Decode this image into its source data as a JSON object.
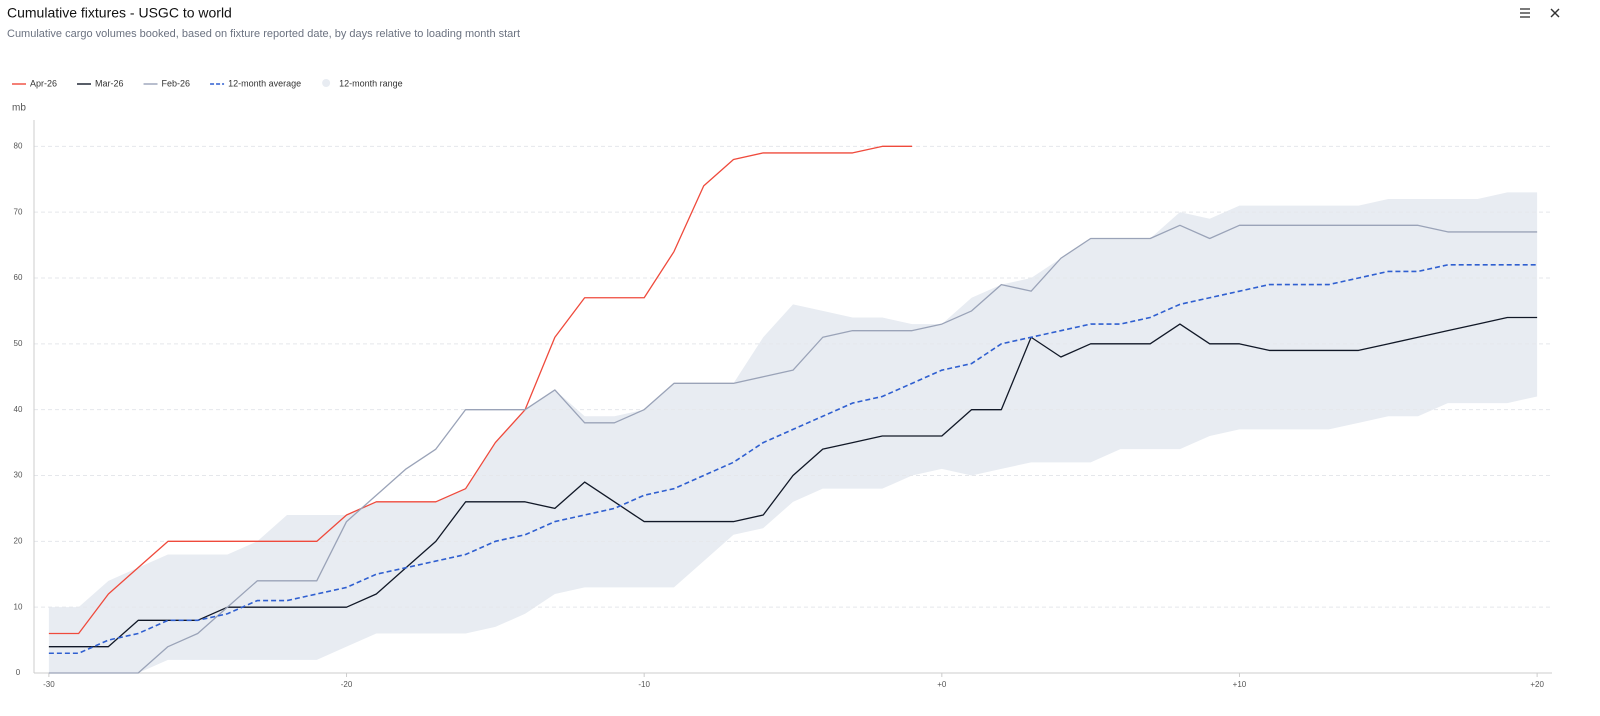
{
  "header": {
    "title": "Cumulative fixtures - USGC to world",
    "subtitle": "Cumulative cargo volumes booked, based on fixture reported date, by days relative to loading month start"
  },
  "chart_data": {
    "type": "line",
    "y_label": "mb",
    "x": [
      -30,
      -29,
      -28,
      -27,
      -26,
      -25,
      -24,
      -23,
      -22,
      -21,
      -20,
      -19,
      -18,
      -17,
      -16,
      -15,
      -14,
      -13,
      -12,
      -11,
      -10,
      -9,
      -8,
      -7,
      -6,
      -5,
      -4,
      -3,
      -2,
      -1,
      0,
      1,
      2,
      3,
      4,
      5,
      6,
      7,
      8,
      9,
      10,
      11,
      12,
      13,
      14,
      15,
      16,
      17,
      18,
      19,
      20
    ],
    "xlim": [
      -30.5,
      20.5
    ],
    "xticks": [
      -30,
      -20,
      -10,
      {
        "value": 0,
        "label": "+0"
      },
      {
        "value": 10,
        "label": "+10"
      },
      {
        "value": 20,
        "label": "+20"
      }
    ],
    "ylim": [
      0,
      84
    ],
    "yticks": [
      0,
      10,
      20,
      30,
      40,
      50,
      60,
      70,
      80
    ],
    "grid": true,
    "range": {
      "name": "12-month range",
      "color": "#e8ecf2",
      "low": [
        0,
        0,
        0,
        0,
        2,
        2,
        2,
        2,
        2,
        2,
        4,
        6,
        6,
        6,
        6,
        7,
        9,
        12,
        13,
        13,
        13,
        13,
        17,
        21,
        22,
        26,
        28,
        28,
        28,
        30,
        31,
        30,
        31,
        32,
        32,
        32,
        34,
        34,
        34,
        36,
        37,
        37,
        37,
        37,
        38,
        39,
        39,
        41,
        41,
        41,
        42
      ],
      "high": [
        10,
        10,
        14,
        16,
        18,
        18,
        18,
        20,
        24,
        24,
        24,
        26,
        26,
        26,
        28,
        35,
        40,
        43,
        39,
        39,
        40,
        44,
        44,
        44,
        51,
        56,
        55,
        54,
        54,
        53,
        53,
        57,
        59,
        60,
        63,
        66,
        66,
        66,
        70,
        69,
        71,
        71,
        71,
        71,
        71,
        72,
        72,
        72,
        72,
        73,
        73
      ]
    },
    "series": [
      {
        "name": "Apr-26",
        "color": "#ef4a3c",
        "dashed": false,
        "values": [
          6,
          6,
          12,
          16,
          20,
          20,
          20,
          20,
          20,
          20,
          24,
          26,
          26,
          26,
          28,
          35,
          40,
          51,
          57,
          57,
          57,
          64,
          74,
          78,
          79,
          79,
          79,
          79,
          80,
          80,
          null,
          null,
          null,
          null,
          null,
          null,
          null,
          null,
          null,
          null,
          null,
          null,
          null,
          null,
          null,
          null,
          null,
          null,
          null,
          null,
          null
        ]
      },
      {
        "name": "Mar-26",
        "color": "#111827",
        "dashed": false,
        "values": [
          4,
          4,
          4,
          8,
          8,
          8,
          10,
          10,
          10,
          10,
          10,
          12,
          16,
          20,
          26,
          26,
          26,
          25,
          29,
          26,
          23,
          23,
          23,
          23,
          24,
          30,
          34,
          35,
          36,
          36,
          36,
          40,
          40,
          51,
          48,
          50,
          50,
          50,
          53,
          50,
          50,
          49,
          49,
          49,
          49,
          50,
          51,
          52,
          53,
          54,
          54
        ]
      },
      {
        "name": "Feb-26",
        "color": "#9aa3b8",
        "dashed": false,
        "values": [
          0,
          0,
          0,
          0,
          4,
          6,
          10,
          14,
          14,
          14,
          23,
          27,
          31,
          34,
          40,
          40,
          40,
          43,
          38,
          38,
          40,
          44,
          44,
          44,
          45,
          46,
          51,
          52,
          52,
          52,
          53,
          55,
          59,
          58,
          63,
          66,
          66,
          66,
          68,
          66,
          68,
          68,
          68,
          68,
          68,
          68,
          68,
          67,
          67,
          67,
          67
        ]
      },
      {
        "name": "12-month average",
        "color": "#2f5fd0",
        "dashed": true,
        "values": [
          3,
          3,
          5,
          6,
          8,
          8,
          9,
          11,
          11,
          12,
          13,
          15,
          16,
          17,
          18,
          20,
          21,
          23,
          24,
          25,
          27,
          28,
          30,
          32,
          35,
          37,
          39,
          41,
          42,
          44,
          46,
          47,
          50,
          51,
          52,
          53,
          53,
          54,
          56,
          57,
          58,
          59,
          59,
          59,
          60,
          61,
          61,
          62,
          62,
          62,
          62
        ]
      }
    ]
  }
}
